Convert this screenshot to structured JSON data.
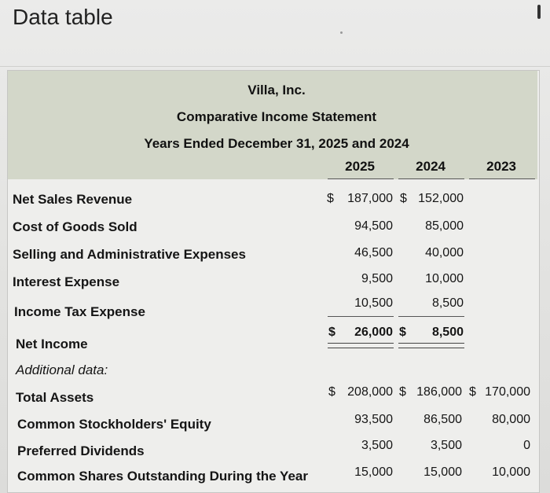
{
  "window": {
    "title": "Data table"
  },
  "statement": {
    "company": "Villa, Inc.",
    "name": "Comparative Income Statement",
    "period": "Years Ended December 31, 2025 and 2024"
  },
  "columns": [
    "2025",
    "2024",
    "2023"
  ],
  "income_rows": [
    {
      "label": "Net Sales Revenue",
      "currency": "$",
      "v2025": "187,000",
      "currency2": "$",
      "v2024": "152,000"
    },
    {
      "label": "Cost of Goods Sold",
      "v2025": "94,500",
      "v2024": "85,000"
    },
    {
      "label": "Selling and Administrative Expenses",
      "v2025": "46,500",
      "v2024": "40,000"
    },
    {
      "label": "Interest Expense",
      "v2025": "9,500",
      "v2024": "10,000"
    },
    {
      "label": "Income Tax Expense",
      "v2025": "10,500",
      "v2024": "8,500"
    },
    {
      "label": "Net Income",
      "currency": "$",
      "v2025": "26,000",
      "currency2": "$",
      "v2024": "8,500"
    }
  ],
  "additional_label": "Additional data:",
  "additional_rows": [
    {
      "label": "Total Assets",
      "currency": "$",
      "v2025": "208,000",
      "currency2": "$",
      "v2024": "186,000",
      "currency3": "$",
      "v2023": "170,000"
    },
    {
      "label": "Common Stockholders' Equity",
      "v2025": "93,500",
      "v2024": "86,500",
      "v2023": "80,000"
    },
    {
      "label": "Preferred Dividends",
      "v2025": "3,500",
      "v2024": "3,500",
      "v2023": "0"
    },
    {
      "label": "Common Shares Outstanding During the Year",
      "v2025": "15,000",
      "v2024": "15,000",
      "v2023": "10,000"
    }
  ]
}
